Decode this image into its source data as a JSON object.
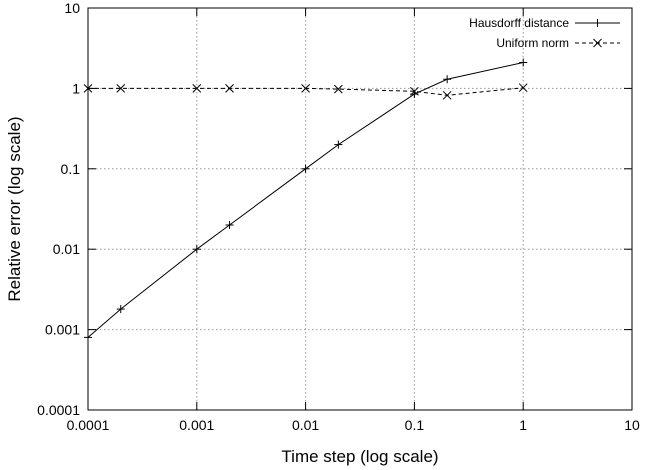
{
  "chart_data": {
    "type": "line",
    "title": "",
    "xlabel": "Time step (log scale)",
    "ylabel": "Relative error (log scale)",
    "xscale": "log",
    "yscale": "log",
    "xlim": [
      0.0001,
      10
    ],
    "ylim": [
      0.0001,
      10
    ],
    "x_ticks": [
      0.0001,
      0.001,
      0.01,
      0.1,
      1,
      10
    ],
    "x_tick_labels": [
      "0.0001",
      "0.001",
      "0.01",
      "0.1",
      "1",
      "10"
    ],
    "y_ticks": [
      0.0001,
      0.001,
      0.01,
      0.1,
      1,
      10
    ],
    "y_tick_labels": [
      "0.0001",
      "0.001",
      "0.01",
      "0.1",
      "1",
      "10"
    ],
    "grid": true,
    "legend_position": "top-right",
    "series": [
      {
        "name": "Hausdorff distance",
        "line_style": "solid",
        "marker": "plus",
        "color": "#000000",
        "x": [
          0.0001,
          0.0002,
          0.001,
          0.002,
          0.01,
          0.02,
          0.1,
          0.2,
          1
        ],
        "y": [
          0.0008,
          0.0018,
          0.01,
          0.02,
          0.1,
          0.2,
          0.85,
          1.3,
          2.1
        ]
      },
      {
        "name": "Uniform norm",
        "line_style": "dashed",
        "marker": "cross",
        "color": "#000000",
        "x": [
          0.0001,
          0.0002,
          0.001,
          0.002,
          0.01,
          0.02,
          0.1,
          0.2,
          1
        ],
        "y": [
          1.0,
          1.0,
          1.0,
          1.0,
          1.0,
          0.98,
          0.92,
          0.82,
          1.02
        ]
      }
    ]
  }
}
